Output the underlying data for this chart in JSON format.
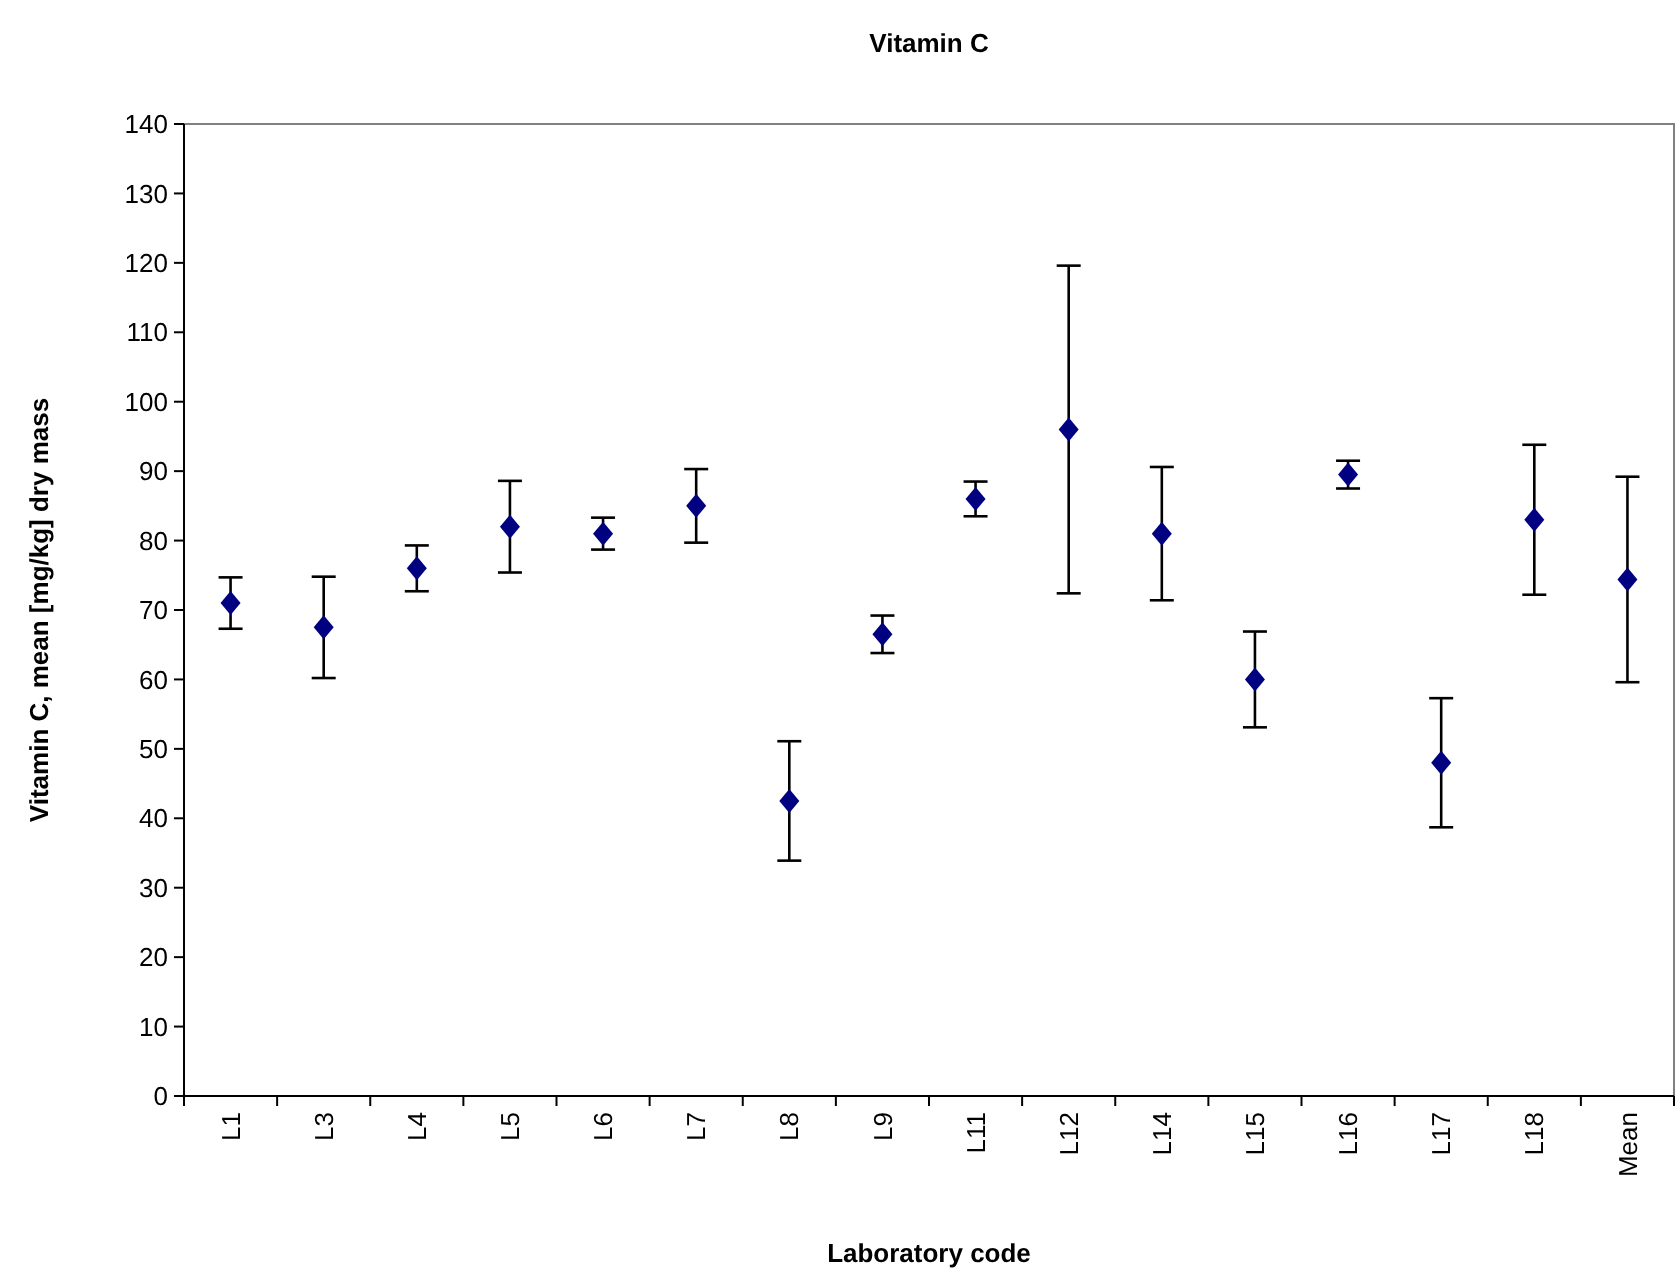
{
  "chart_data": {
    "type": "scatter",
    "title": "Vitamin C",
    "xlabel": "Laboratory code",
    "ylabel": "Vitamin C, mean [mg/kg] dry mass",
    "categories": [
      "L1",
      "L3",
      "L4",
      "L5",
      "L6",
      "L7",
      "L8",
      "L9",
      "L11",
      "L12",
      "L14",
      "L15",
      "L16",
      "L17",
      "L18",
      "Mean"
    ],
    "values": [
      71,
      67.5,
      76,
      82,
      81,
      85,
      42.5,
      66.5,
      86,
      96,
      81,
      60,
      89.5,
      48,
      83,
      74.4
    ],
    "errors": [
      3.7,
      7.3,
      3.3,
      6.6,
      2.3,
      5.3,
      8.6,
      2.7,
      2.5,
      23.6,
      9.6,
      6.9,
      2,
      9.3,
      10.8,
      14.8
    ],
    "color": "#000080",
    "marker": "diamond",
    "ylim": [
      0,
      140
    ],
    "yticks": [
      0,
      10,
      20,
      30,
      40,
      50,
      60,
      70,
      80,
      90,
      100,
      110,
      120,
      130,
      140
    ],
    "grid": false
  }
}
